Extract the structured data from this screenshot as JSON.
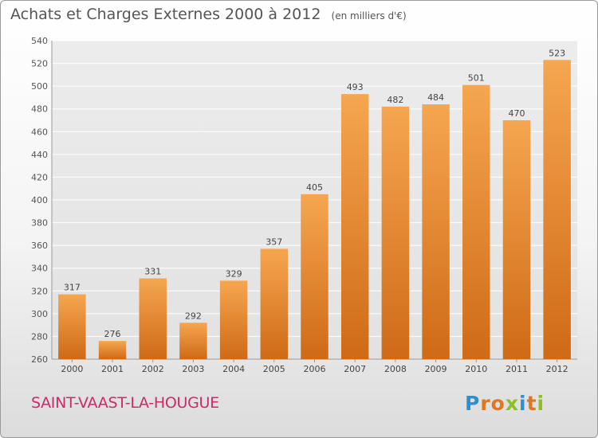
{
  "chart_data": {
    "type": "bar",
    "title": "Achats et Charges Externes 2000 à 2012",
    "unit_label": "(en milliers d'€)",
    "categories": [
      "2000",
      "2001",
      "2002",
      "2003",
      "2004",
      "2005",
      "2006",
      "2007",
      "2008",
      "2009",
      "2010",
      "2011",
      "2012"
    ],
    "values": [
      317,
      276,
      331,
      292,
      329,
      357,
      405,
      493,
      482,
      484,
      501,
      470,
      523
    ],
    "ylim": [
      260,
      540
    ],
    "yticks": [
      260,
      280,
      300,
      320,
      340,
      360,
      380,
      400,
      420,
      440,
      460,
      480,
      500,
      520,
      540
    ],
    "grid": true,
    "bar_color": "#f0943a"
  },
  "location": "SAINT-VAAST-LA-HOUGUE",
  "logo": {
    "text": "Proxiti",
    "letters": [
      {
        "ch": "P",
        "color": "#2e8fd0"
      },
      {
        "ch": "r",
        "color": "#e0771e"
      },
      {
        "ch": "o",
        "color": "#e0771e"
      },
      {
        "ch": "x",
        "color": "#8cbf26"
      },
      {
        "ch": "i",
        "color": "#2e8fd0"
      },
      {
        "ch": "t",
        "color": "#e0771e"
      },
      {
        "ch": "i",
        "color": "#8cbf26"
      }
    ]
  }
}
